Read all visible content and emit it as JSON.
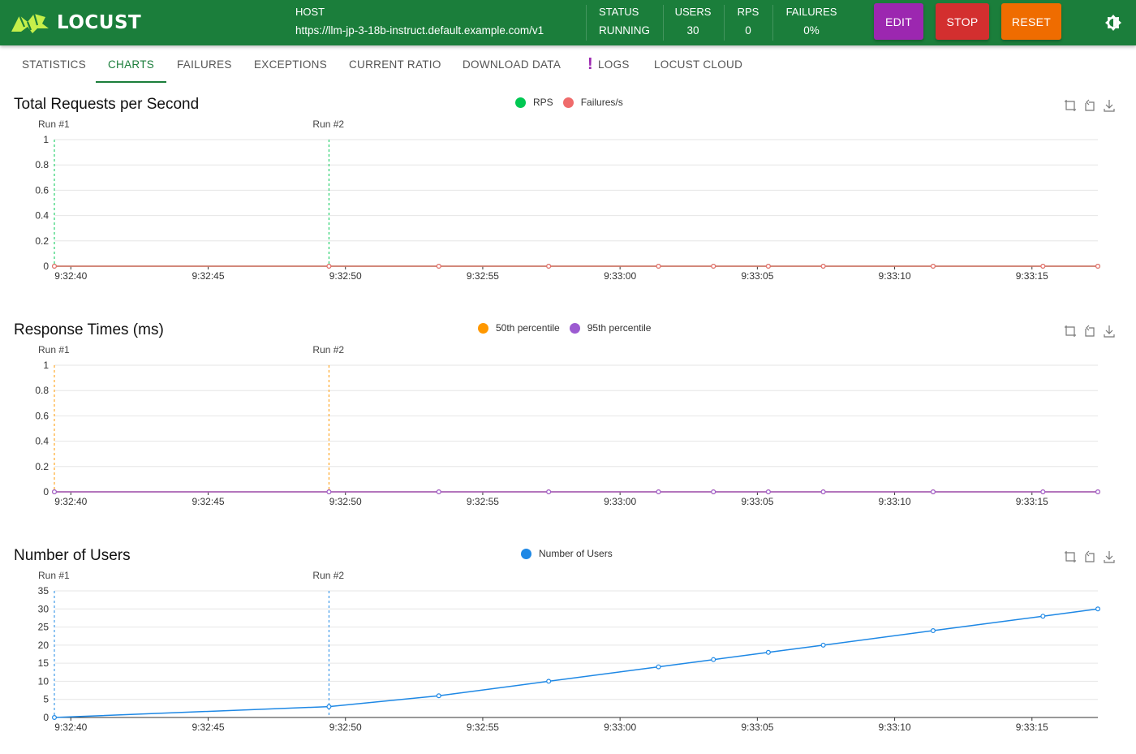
{
  "app": {
    "name": "LOCUST"
  },
  "header": {
    "host_label": "HOST",
    "host_value": "https://llm-jp-3-18b-instruct.default.example.com/v1",
    "status_label": "STATUS",
    "status_value": "RUNNING",
    "users_label": "USERS",
    "users_value": "30",
    "rps_label": "RPS",
    "rps_value": "0",
    "failures_label": "FAILURES",
    "failures_value": "0%",
    "buttons": {
      "edit": "EDIT",
      "stop": "STOP",
      "reset": "RESET"
    },
    "colors": {
      "bar": "#1b7e3b",
      "edit": "#9c27b0",
      "stop": "#d32f2f",
      "reset": "#ef6c00"
    }
  },
  "tabs": [
    {
      "label": "STATISTICS",
      "active": false
    },
    {
      "label": "CHARTS",
      "active": true
    },
    {
      "label": "FAILURES",
      "active": false
    },
    {
      "label": "EXCEPTIONS",
      "active": false
    },
    {
      "label": "CURRENT RATIO",
      "active": false
    },
    {
      "label": "DOWNLOAD DATA",
      "active": false
    },
    {
      "label": "LOGS",
      "active": false,
      "alert": "!"
    },
    {
      "label": "LOCUST CLOUD",
      "active": false
    }
  ],
  "chart_data": [
    {
      "type": "line",
      "title": "Total Requests per Second",
      "x_ticks": [
        "9:32:40",
        "9:32:45",
        "9:32:50",
        "9:32:55",
        "9:33:00",
        "9:33:05",
        "9:33:10",
        "9:33:15"
      ],
      "y_ticks": [
        "0",
        "0.2",
        "0.4",
        "0.6",
        "0.8",
        "1"
      ],
      "ylim": [
        0,
        1
      ],
      "grid": true,
      "legend_position": "top-center",
      "runs": [
        "Run #1",
        "Run #2"
      ],
      "run_times": [
        "9:32:39.4",
        "9:32:49.4"
      ],
      "marker_color": "#00c853",
      "x": [
        "9:32:39.4",
        "9:32:49.4",
        "9:32:53.4",
        "9:32:57.4",
        "9:33:01.4",
        "9:33:03.4",
        "9:33:05.4",
        "9:33:07.4",
        "9:33:11.4",
        "9:33:15.4",
        "9:33:17.4"
      ],
      "series": [
        {
          "name": "RPS",
          "color": "#00c853",
          "values": [
            0,
            0,
            0,
            0,
            0,
            0,
            0,
            0,
            0,
            0,
            0
          ]
        },
        {
          "name": "Failures/s",
          "color": "#ef6b6b",
          "values": [
            0,
            0,
            0,
            0,
            0,
            0,
            0,
            0,
            0,
            0,
            0
          ]
        }
      ]
    },
    {
      "type": "line",
      "title": "Response Times (ms)",
      "x_ticks": [
        "9:32:40",
        "9:32:45",
        "9:32:50",
        "9:32:55",
        "9:33:00",
        "9:33:05",
        "9:33:10",
        "9:33:15"
      ],
      "y_ticks": [
        "0",
        "0.2",
        "0.4",
        "0.6",
        "0.8",
        "1"
      ],
      "ylim": [
        0,
        1
      ],
      "grid": true,
      "legend_position": "top-center",
      "runs": [
        "Run #1",
        "Run #2"
      ],
      "run_times": [
        "9:32:39.4",
        "9:32:49.4"
      ],
      "marker_color": "#ff9800",
      "x": [
        "9:32:39.4",
        "9:32:49.4",
        "9:32:53.4",
        "9:32:57.4",
        "9:33:01.4",
        "9:33:03.4",
        "9:33:05.4",
        "9:33:07.4",
        "9:33:11.4",
        "9:33:15.4",
        "9:33:17.4"
      ],
      "series": [
        {
          "name": "50th percentile",
          "color": "#ff9800",
          "values": [
            0,
            0,
            0,
            0,
            0,
            0,
            0,
            0,
            0,
            0,
            0
          ]
        },
        {
          "name": "95th percentile",
          "color": "#9c5bd1",
          "values": [
            0,
            0,
            0,
            0,
            0,
            0,
            0,
            0,
            0,
            0,
            0
          ]
        }
      ]
    },
    {
      "type": "line",
      "title": "Number of Users",
      "x_ticks": [
        "9:32:40",
        "9:32:45",
        "9:32:50",
        "9:32:55",
        "9:33:00",
        "9:33:05",
        "9:33:10",
        "9:33:15"
      ],
      "y_ticks": [
        "0",
        "5",
        "10",
        "15",
        "20",
        "25",
        "30",
        "35"
      ],
      "ylim": [
        0,
        35
      ],
      "grid": true,
      "legend_position": "top-center",
      "runs": [
        "Run #1",
        "Run #2"
      ],
      "run_times": [
        "9:32:39.4",
        "9:32:49.4"
      ],
      "marker_color": "#1e88e5",
      "x": [
        "9:32:39.4",
        "9:32:49.4",
        "9:32:53.4",
        "9:32:57.4",
        "9:33:01.4",
        "9:33:03.4",
        "9:33:05.4",
        "9:33:07.4",
        "9:33:11.4",
        "9:33:15.4",
        "9:33:17.4"
      ],
      "series": [
        {
          "name": "Number of Users",
          "color": "#1e88e5",
          "values": [
            0,
            3,
            6,
            10,
            14,
            16,
            18,
            20,
            24,
            28,
            30
          ]
        }
      ]
    }
  ]
}
